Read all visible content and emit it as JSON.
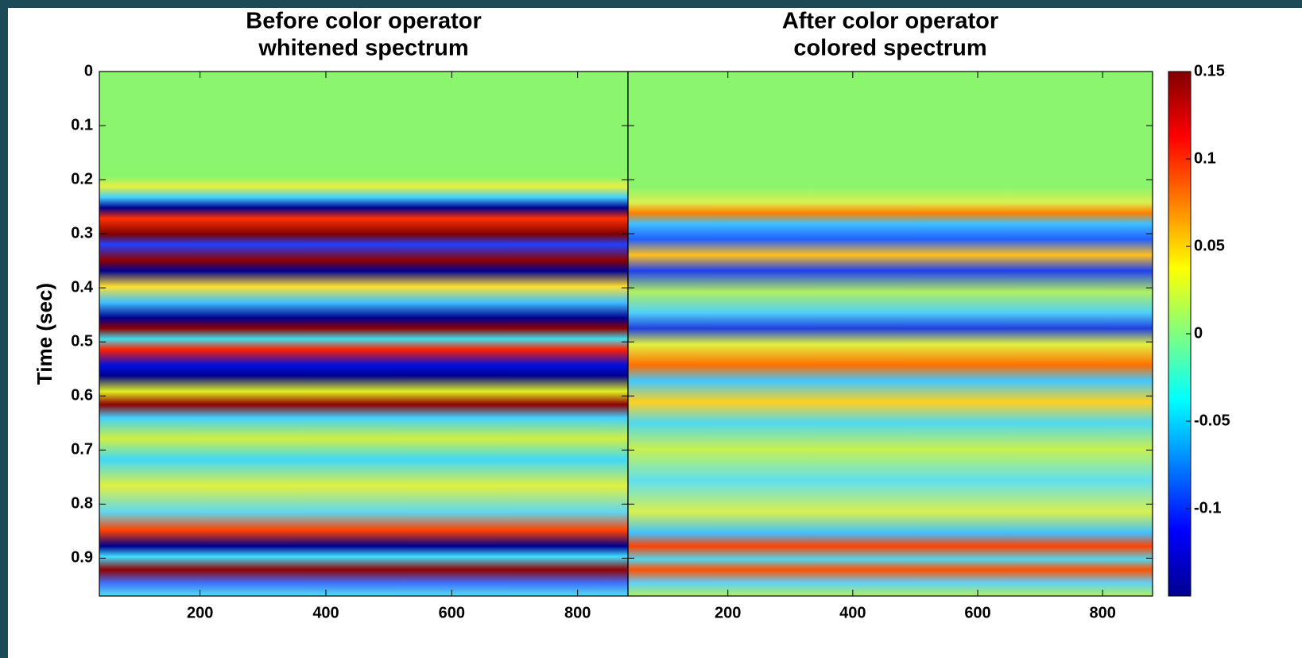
{
  "chart_data": [
    {
      "type": "heatmap",
      "title": [
        "Before color operator",
        "whitened spectrum"
      ],
      "ylabel": "Time (sec)",
      "xlim": [
        40,
        880
      ],
      "xticks": [
        200,
        400,
        600,
        800
      ],
      "ylim": [
        0,
        0.97
      ],
      "yticks": [
        0,
        0.1,
        0.2,
        0.3,
        0.4,
        0.5,
        0.6,
        0.7,
        0.8,
        0.9
      ],
      "y_reversed": true
    },
    {
      "type": "heatmap",
      "title": [
        "After color operator",
        "colored spectrum"
      ],
      "xlim": [
        40,
        880
      ],
      "xticks": [
        200,
        400,
        600,
        800
      ],
      "ylim": [
        0,
        0.97
      ],
      "yticks": [
        0,
        0.1,
        0.2,
        0.3,
        0.4,
        0.5,
        0.6,
        0.7,
        0.8,
        0.9
      ],
      "y_reversed": true,
      "colorbar": {
        "lim": [
          -0.15,
          0.15
        ],
        "ticks": [
          0.15,
          0.1,
          0.05,
          0,
          -0.05,
          -0.1
        ]
      }
    }
  ]
}
